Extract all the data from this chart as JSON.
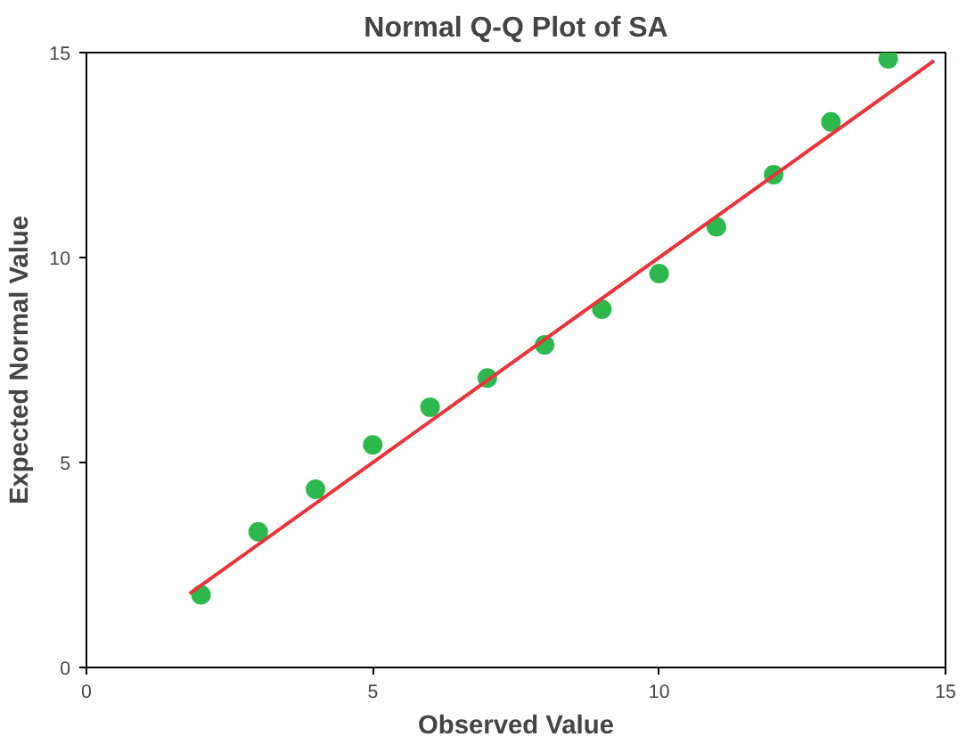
{
  "chart_data": {
    "type": "scatter",
    "title": "Normal Q-Q Plot of SA",
    "xlabel": "Observed Value",
    "ylabel": "Expected Normal Value",
    "xlim": [
      0,
      15
    ],
    "ylim": [
      0,
      15
    ],
    "xticks": [
      0,
      5,
      10,
      15
    ],
    "yticks": [
      0,
      5,
      10,
      15
    ],
    "grid": false,
    "series": [
      {
        "color": "#2db84d",
        "marker": "circle",
        "x": [
          2,
          3,
          4,
          5,
          6,
          7,
          8,
          9,
          10,
          11,
          12,
          13,
          14
        ],
        "values": [
          1.77,
          3.31,
          4.35,
          5.43,
          6.35,
          7.06,
          7.87,
          8.74,
          9.61,
          10.75,
          12.02,
          13.31,
          14.85
        ]
      },
      {
        "type": "line",
        "color": "#e8343a",
        "line_style": "solid",
        "x": [
          1.8,
          14.8
        ],
        "values": [
          1.8,
          14.8
        ]
      }
    ]
  }
}
